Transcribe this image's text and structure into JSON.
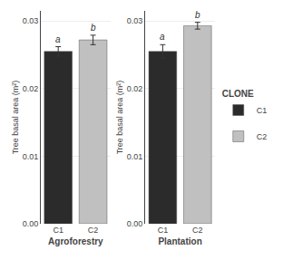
{
  "chart_data": [
    {
      "type": "bar",
      "x_label": "Agroforestry",
      "y_label": "Tree basal area (m²)",
      "categories": [
        "C1",
        "C2"
      ],
      "values": [
        0.0255,
        0.0272
      ],
      "errors": [
        0.0007,
        0.0007
      ],
      "annotations": [
        "a",
        "b"
      ],
      "colors": [
        "#2b2b2b",
        "#c0c0c0"
      ],
      "ylim": [
        0.0,
        0.0315
      ],
      "yticks": [
        {
          "value": 0,
          "label": "0.00"
        },
        0.01,
        0.02,
        0.03
      ],
      "grid": true
    },
    {
      "type": "bar",
      "x_label": "Plantation",
      "y_label": "Tree basal area (m²)",
      "categories": [
        "C1",
        "C2"
      ],
      "values": [
        0.0255,
        0.0293
      ],
      "errors": [
        0.001,
        0.0005
      ],
      "annotations": [
        "a",
        "b"
      ],
      "colors": [
        "#2b2b2b",
        "#c0c0c0"
      ],
      "ylim": [
        0.0,
        0.0315
      ],
      "yticks": [
        {
          "value": 0,
          "label": "0.00"
        },
        0.01,
        0.02,
        0.03
      ],
      "grid": true,
      "legend": "right",
      "legend_title": "CLONE"
    }
  ]
}
